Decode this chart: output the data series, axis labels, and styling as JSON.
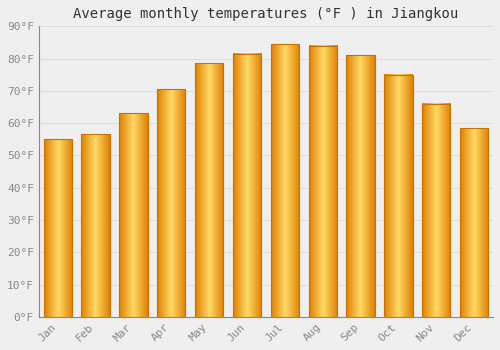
{
  "title": "Average monthly temperatures (°F ) in Jiangkou",
  "months": [
    "Jan",
    "Feb",
    "Mar",
    "Apr",
    "May",
    "Jun",
    "Jul",
    "Aug",
    "Sep",
    "Oct",
    "Nov",
    "Dec"
  ],
  "values": [
    55,
    56.5,
    63,
    70.5,
    78.5,
    81.5,
    84.5,
    84,
    81,
    75,
    66,
    58.5
  ],
  "bar_color_main": "#FFB300",
  "bar_color_light": "#FFD966",
  "bar_color_dark": "#E08000",
  "bar_edge_color": "#C87000",
  "ylim": [
    0,
    90
  ],
  "yticks": [
    0,
    10,
    20,
    30,
    40,
    50,
    60,
    70,
    80,
    90
  ],
  "ytick_labels": [
    "0°F",
    "10°F",
    "20°F",
    "30°F",
    "40°F",
    "50°F",
    "60°F",
    "70°F",
    "80°F",
    "90°F"
  ],
  "background_color": "#EFEFEF",
  "grid_color": "#DDDDDD",
  "title_fontsize": 10,
  "tick_fontsize": 8,
  "tick_color": "#888888",
  "font_family": "monospace"
}
